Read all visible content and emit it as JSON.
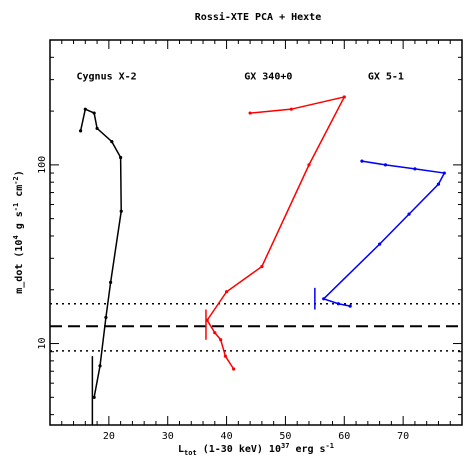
{
  "chart_data": {
    "type": "line",
    "title": "Rossi-XTE PCA + Hexte",
    "xlabel_parts": {
      "L": "L",
      "sub": "tot",
      "mid": " (1-30 keV) 10",
      "sup1": "37",
      "unit": " erg s",
      "sup2": "-1"
    },
    "ylabel_parts": {
      "a": "m_dot (10",
      "s1": "4",
      "b": " g s",
      "s2": "-1",
      "c": " cm",
      "s3": "-2",
      "d": ")"
    },
    "xlim": [
      10,
      80
    ],
    "ylim": [
      3.5,
      500
    ],
    "yscale": "log",
    "x_ticks": [
      20,
      30,
      40,
      50,
      60,
      70
    ],
    "x_tick_labels": [
      "20",
      "30",
      "40",
      "50",
      "60",
      "70"
    ],
    "y_labeled_ticks": [
      10,
      100
    ],
    "y_tick_labels": [
      "10",
      "100"
    ],
    "grid": false,
    "reference_lines": [
      {
        "y": 12.5,
        "style": "dashed"
      },
      {
        "y": 16.7,
        "style": "dotted"
      },
      {
        "y": 9.1,
        "style": "dotted"
      }
    ],
    "series": [
      {
        "name": "Cygnus X-2",
        "color": "#000000",
        "label_pos": [
          14.5,
          300
        ],
        "points": [
          [
            15.2,
            155
          ],
          [
            16.0,
            205
          ],
          [
            17.5,
            195
          ],
          [
            18.0,
            160
          ],
          [
            20.5,
            135
          ],
          [
            22.0,
            110
          ],
          [
            22.1,
            55
          ],
          [
            20.3,
            22
          ],
          [
            19.5,
            14
          ],
          [
            18.5,
            7.5
          ],
          [
            17.5,
            5.0
          ]
        ],
        "errorbars": [
          {
            "x": 17.2,
            "ylo": 3.5,
            "yhi": 8.5
          }
        ]
      },
      {
        "name": "GX 340+0",
        "color": "#ff0000",
        "label_pos": [
          43,
          300
        ],
        "points": [
          [
            44.0,
            195
          ],
          [
            51.0,
            205
          ],
          [
            60.0,
            240
          ],
          [
            54.0,
            100
          ],
          [
            46.0,
            27
          ],
          [
            40.0,
            19.5
          ],
          [
            36.7,
            13.5
          ],
          [
            38.0,
            11.5
          ],
          [
            39.0,
            10.5
          ],
          [
            39.8,
            8.5
          ],
          [
            41.2,
            7.2
          ]
        ],
        "errorbars": [
          {
            "x": 36.5,
            "ylo": 10.5,
            "yhi": 15.5
          }
        ]
      },
      {
        "name": "GX 5-1",
        "color": "#0000ff",
        "label_pos": [
          64,
          300
        ],
        "points": [
          [
            63.0,
            105
          ],
          [
            67.0,
            100
          ],
          [
            72.0,
            95
          ],
          [
            77.0,
            90
          ],
          [
            76.0,
            78
          ],
          [
            71.0,
            53
          ],
          [
            66.0,
            36
          ],
          [
            56.5,
            17.8
          ],
          [
            59.0,
            16.7
          ],
          [
            61.0,
            16.2
          ]
        ],
        "errorbars": [
          {
            "x": 55.0,
            "ylo": 15.5,
            "yhi": 20.5
          }
        ]
      }
    ]
  }
}
